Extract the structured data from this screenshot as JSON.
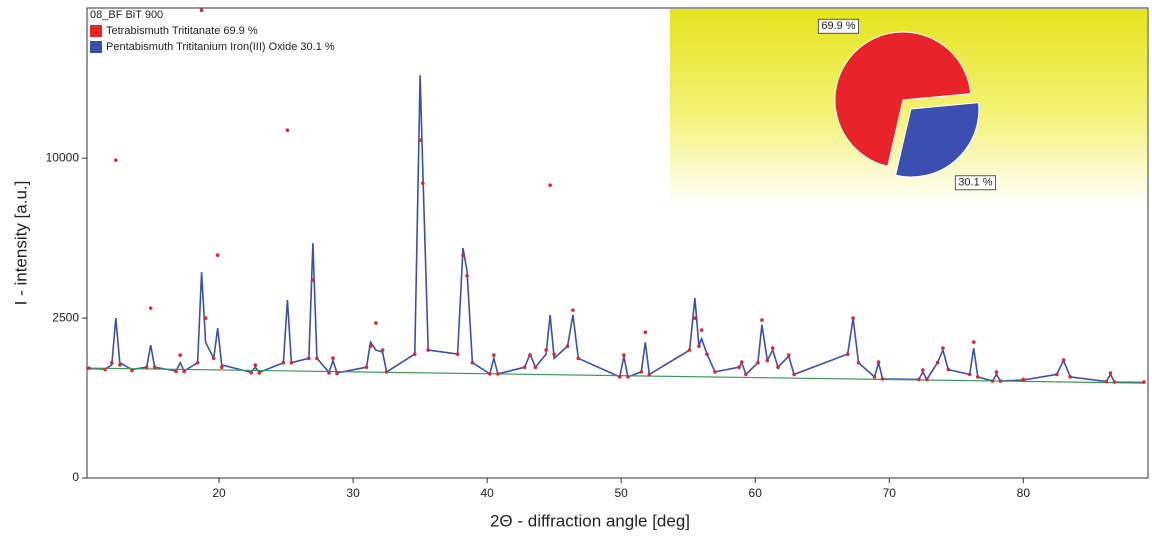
{
  "chart_data": [
    {
      "type": "line",
      "title": "08_BF BiT 900",
      "x_label": "2Θ - diffraction angle [deg]",
      "y_label": "I - intensity [a.u.]",
      "y_scale": "sqrt",
      "xlim": [
        10.15,
        89.3
      ],
      "ylim": [
        0,
        21600
      ],
      "xticks": [
        20,
        30,
        40,
        50,
        60,
        70,
        80
      ],
      "yticks": [
        0,
        2500,
        10000
      ],
      "legend": "upper left",
      "grid": false,
      "x": [
        10.3,
        11.5,
        12.0,
        12.3,
        12.6,
        13.5,
        14.6,
        14.9,
        15.2,
        16.8,
        17.1,
        17.4,
        18.4,
        18.7,
        19.0,
        19.6,
        19.9,
        20.2,
        22.4,
        22.7,
        23.0,
        24.8,
        25.1,
        25.4,
        26.7,
        27.0,
        27.3,
        28.2,
        28.5,
        28.8,
        31.0,
        31.3,
        31.7,
        32.2,
        32.5,
        34.6,
        35.0,
        35.2,
        35.6,
        37.8,
        38.2,
        38.5,
        38.9,
        40.2,
        40.5,
        40.8,
        42.8,
        43.2,
        43.6,
        44.4,
        44.7,
        45.0,
        46.0,
        46.4,
        46.8,
        49.9,
        50.2,
        50.5,
        51.5,
        51.8,
        52.1,
        55.1,
        55.5,
        55.8,
        56.0,
        56.4,
        57.0,
        58.8,
        59.0,
        59.3,
        60.2,
        60.5,
        60.9,
        61.3,
        61.7,
        62.5,
        62.9,
        66.9,
        67.3,
        67.7,
        68.9,
        69.2,
        69.5,
        72.2,
        72.5,
        72.8,
        73.6,
        74.0,
        74.4,
        76.0,
        76.3,
        76.6,
        77.7,
        78.0,
        78.3,
        80.0,
        82.5,
        83.0,
        83.5,
        86.2,
        86.5,
        86.8,
        89.0
      ],
      "series": [
        {
          "name": "Tetrabismuth Trititanate 69.9 %",
          "color": "#e8232a",
          "marker": "dot",
          "values": [
            1180,
            1150,
            1300,
            9880,
            1250,
            1130,
            1200,
            2822,
            1200,
            1110,
            1477,
            1110,
            1300,
            21390,
            2500,
            1400,
            4856,
            1200,
            1080,
            1247,
            1080,
            1300,
            11827,
            1300,
            1400,
            3829,
            1400,
            1080,
            1406,
            1070,
            1200,
            1700,
            2346,
            1600,
            1100,
            1500,
            11156,
            8500,
            1600,
            1500,
            4856,
            4000,
            1300,
            1060,
            1477,
            1060,
            1200,
            1477,
            1200,
            1600,
            8384,
            1500,
            1700,
            2756,
            1400,
            1000,
            1477,
            1000,
            1100,
            2081,
            1050,
            1600,
            2500,
            1700,
            2139,
            1500,
            1100,
            1200,
            1314,
            1050,
            1300,
            2438,
            1350,
            1650,
            1200,
            1477,
            1050,
            1500,
            2500,
            1300,
            1000,
            1314,
            960,
            950,
            1139,
            950,
            1300,
            1650,
            1150,
            1050,
            1806,
            1000,
            920,
            1097,
            920,
            950,
            1050,
            1360,
            1000,
            910,
            1077,
            900,
            900
          ]
        },
        {
          "name": "Pentabismuth Trititanium Iron(III) Oxide 30.1 %",
          "color": "#3a4fb0",
          "marker": "line",
          "values": [
            1170,
            1160,
            1250,
            2500,
            1300,
            1150,
            1200,
            1727,
            1200,
            1120,
            1300,
            1120,
            1300,
            4144,
            1800,
            1400,
            2197,
            1250,
            1090,
            1200,
            1090,
            1300,
            3094,
            1300,
            1400,
            5394,
            1400,
            1090,
            1350,
            1080,
            1200,
            1806,
            1600,
            1550,
            1100,
            1500,
            15860,
            9264,
            1600,
            1500,
            5166,
            4200,
            1300,
            1060,
            1400,
            1060,
            1200,
            1500,
            1200,
            1500,
            2594,
            1400,
            1700,
            2600,
            1400,
            1000,
            1450,
            1000,
            1100,
            1800,
            1050,
            1600,
            3164,
            1700,
            1900,
            1500,
            1100,
            1200,
            1300,
            1050,
            1300,
            2300,
            1350,
            1600,
            1200,
            1450,
            1050,
            1500,
            2500,
            1300,
            1000,
            1300,
            960,
            950,
            1100,
            950,
            1300,
            1600,
            1150,
            1050,
            1650,
            1000,
            920,
            1050,
            920,
            940,
            1050,
            1350,
            1000,
            910,
            1050,
            900,
            890
          ]
        },
        {
          "color": "#3a9a5a",
          "marker": "line",
          "x": [
            10.3,
            89.0
          ],
          "values": [
            1180,
            880
          ]
        }
      ]
    },
    {
      "type": "pie",
      "values": [
        69.9,
        30.1
      ],
      "value_labels": [
        "69.9 %",
        "30.1 %"
      ],
      "colors": [
        "#e8232a",
        "#3a4fb0"
      ],
      "explode": [
        false,
        true
      ]
    }
  ]
}
